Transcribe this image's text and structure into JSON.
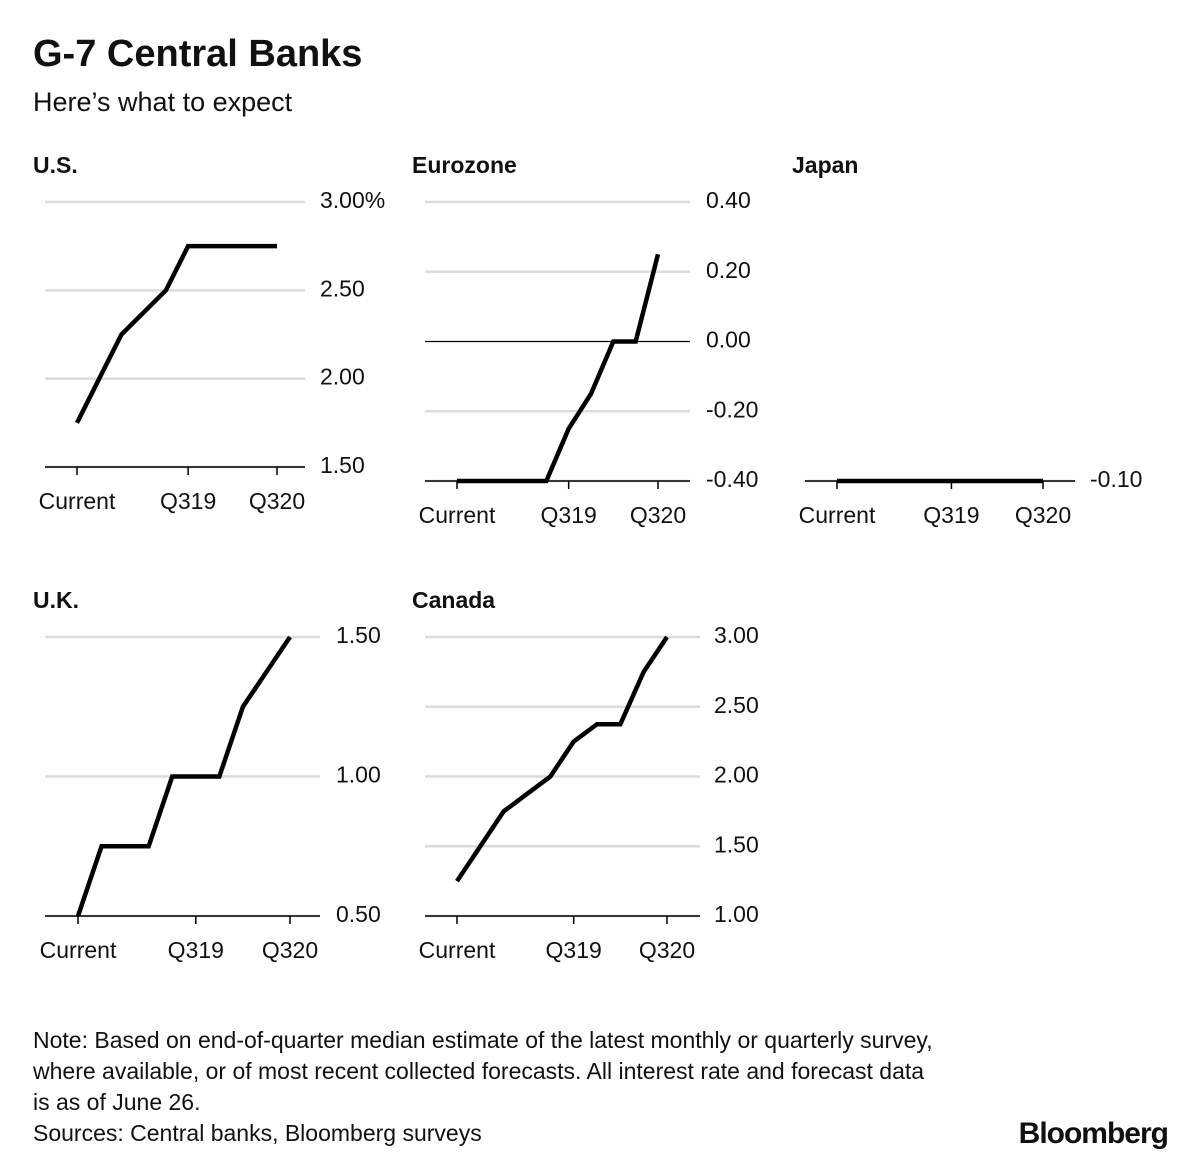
{
  "title": "G-7 Central Banks",
  "subtitle": "Here’s what to expect",
  "note": "Note: Based on end-of-quarter median estimate of the latest monthly or quarterly survey, where available, or of most recent collected forecasts. All interest rate and forecast data is as of June 26.",
  "source": "Sources: Central banks, Bloomberg surveys",
  "brand": "Bloomberg",
  "chart_data": [
    {
      "type": "line",
      "title": "U.S.",
      "categories": [
        "Current",
        null,
        null,
        null,
        null,
        "Q319",
        null,
        null,
        null,
        "Q320"
      ],
      "values": [
        1.75,
        2.0,
        2.25,
        2.375,
        2.5,
        2.75,
        2.75,
        2.75,
        2.75,
        2.75
      ],
      "color": "#000000",
      "ylim": [
        1.5,
        3.0
      ],
      "yticks": [
        {
          "value": 1.5,
          "label": "1.50"
        },
        {
          "value": 2.0,
          "label": "2.00"
        },
        {
          "value": 2.5,
          "label": "2.50"
        },
        {
          "value": 3.0,
          "label": "3.00%"
        }
      ],
      "grid": true
    },
    {
      "type": "line",
      "title": "Eurozone",
      "categories": [
        "Current",
        null,
        null,
        null,
        null,
        "Q319",
        null,
        null,
        null,
        "Q320"
      ],
      "values": [
        -0.4,
        -0.4,
        -0.4,
        -0.4,
        -0.4,
        -0.25,
        -0.15,
        0,
        0,
        0.25
      ],
      "color": "#000000",
      "ylim": [
        -0.4,
        0.4
      ],
      "yticks": [
        {
          "value": -0.4,
          "label": "-0.40"
        },
        {
          "value": -0.2,
          "label": "-0.20"
        },
        {
          "value": 0,
          "label": "0.00"
        },
        {
          "value": 0.2,
          "label": "0.20"
        },
        {
          "value": 0.4,
          "label": "0.40"
        }
      ],
      "grid": true
    },
    {
      "type": "line",
      "title": "Japan",
      "categories": [
        "Current",
        null,
        null,
        null,
        null,
        "Q319",
        null,
        null,
        null,
        "Q320"
      ],
      "values": [
        -0.1,
        -0.1,
        -0.1,
        -0.1,
        -0.1,
        -0.1,
        -0.1,
        -0.1,
        -0.1,
        -0.1
      ],
      "color": "#000000",
      "ylim": [
        -0.1,
        0.3
      ],
      "yticks": [
        {
          "value": -0.1,
          "label": "-0.10"
        }
      ],
      "grid": true
    },
    {
      "type": "line",
      "title": "U.K.",
      "categories": [
        "Current",
        null,
        null,
        null,
        null,
        "Q319",
        null,
        null,
        null,
        "Q320"
      ],
      "values": [
        0.5,
        0.75,
        0.75,
        0.75,
        1.0,
        1.0,
        1.0,
        1.25,
        1.375,
        1.5
      ],
      "color": "#000000",
      "ylim": [
        0.5,
        1.5
      ],
      "yticks": [
        {
          "value": 0.5,
          "label": "0.50"
        },
        {
          "value": 1.0,
          "label": "1.00"
        },
        {
          "value": 1.5,
          "label": "1.50"
        }
      ],
      "grid": true
    },
    {
      "type": "line",
      "title": "Canada",
      "categories": [
        "Current",
        null,
        null,
        null,
        null,
        "Q319",
        null,
        null,
        null,
        "Q320"
      ],
      "values": [
        1.25,
        1.5,
        1.75,
        1.875,
        2.0,
        2.25,
        2.375,
        2.375,
        2.75,
        3.0
      ],
      "color": "#000000",
      "ylim": [
        1.0,
        3.0
      ],
      "yticks": [
        {
          "value": 1.0,
          "label": "1.00"
        },
        {
          "value": 1.5,
          "label": "1.50"
        },
        {
          "value": 2.0,
          "label": "2.00"
        },
        {
          "value": 2.5,
          "label": "2.50"
        },
        {
          "value": 3.0,
          "label": "3.00"
        }
      ],
      "grid": true
    }
  ]
}
